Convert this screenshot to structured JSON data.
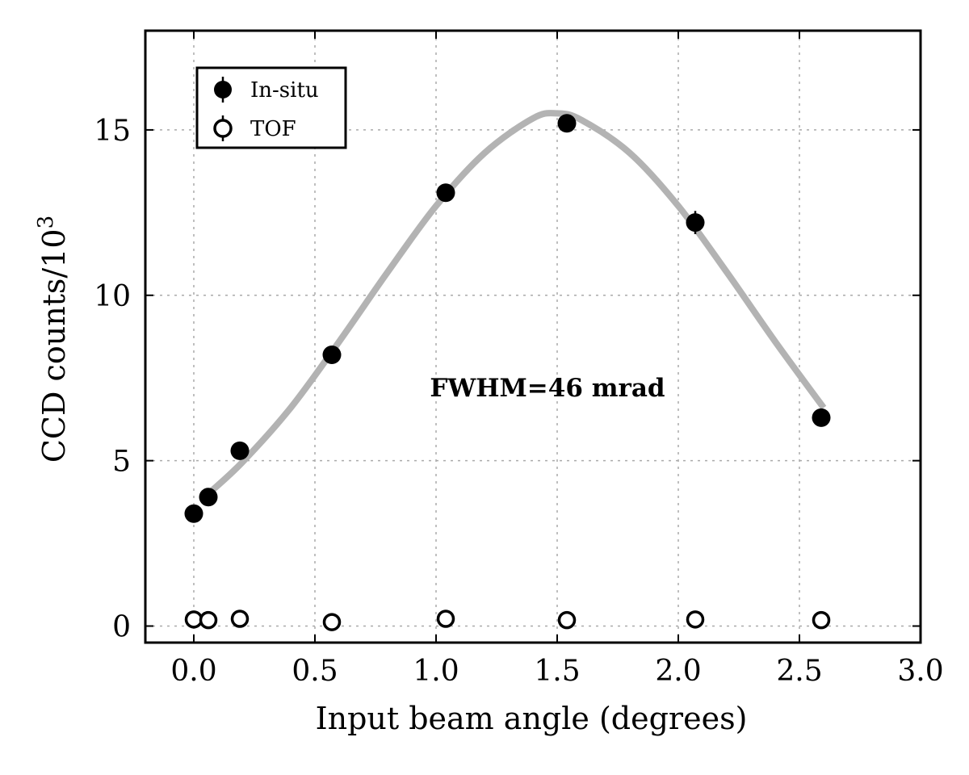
{
  "chart_data": {
    "type": "scatter",
    "xlabel": "Input beam angle (degrees)",
    "ylabel_main": "CCD counts/10",
    "ylabel_exp": "3",
    "xlim": [
      -0.2,
      3.0
    ],
    "ylim": [
      -0.5,
      18.0
    ],
    "xticks": [
      0.0,
      0.5,
      1.0,
      1.5,
      2.0,
      2.5,
      3.0
    ],
    "xtick_labels": [
      "0.0",
      "0.5",
      "1.0",
      "1.5",
      "2.0",
      "2.5",
      "3.0"
    ],
    "yticks": [
      0,
      5,
      10,
      15
    ],
    "ytick_labels": [
      "0",
      "5",
      "10",
      "15"
    ],
    "grid": true,
    "legend_position": "top-left",
    "annotation": "FWHM=46 mrad",
    "series": [
      {
        "name": "In-situ",
        "marker": "filled-circle",
        "color": "#000000",
        "x": [
          0.0,
          0.06,
          0.19,
          0.57,
          1.04,
          1.54,
          2.07,
          2.59
        ],
        "y": [
          3.4,
          3.9,
          5.3,
          8.2,
          13.1,
          15.2,
          12.2,
          6.3
        ],
        "yerr": [
          0.1,
          0.1,
          0.15,
          0.15,
          0.15,
          0.15,
          0.35,
          0.1
        ]
      },
      {
        "name": "TOF",
        "marker": "open-circle",
        "color": "#000000",
        "x": [
          0.0,
          0.06,
          0.19,
          0.57,
          1.04,
          1.54,
          2.07,
          2.59
        ],
        "y": [
          0.2,
          0.18,
          0.22,
          0.12,
          0.22,
          0.18,
          0.2,
          0.18
        ],
        "yerr": [
          0.05,
          0.05,
          0.05,
          0.05,
          0.05,
          0.05,
          0.05,
          0.05
        ]
      }
    ],
    "fit_curve": {
      "color": "#b3b3b3",
      "x": [
        0.06,
        0.2,
        0.4,
        0.6,
        0.8,
        1.0,
        1.2,
        1.4,
        1.5,
        1.6,
        1.8,
        2.0,
        2.2,
        2.4,
        2.6
      ],
      "y": [
        4.0,
        4.95,
        6.6,
        8.6,
        10.7,
        12.7,
        14.3,
        15.35,
        15.5,
        15.3,
        14.3,
        12.7,
        10.7,
        8.6,
        6.6
      ]
    }
  }
}
